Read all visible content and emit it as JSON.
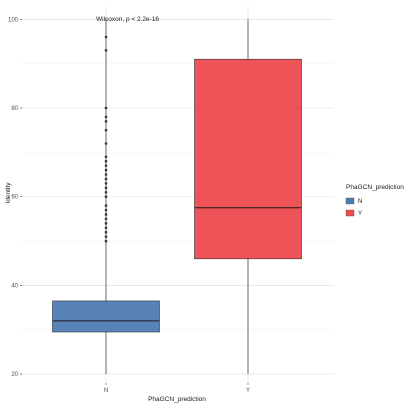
{
  "chart_data": {
    "type": "boxplot",
    "annotation": "Wilcoxon, p < 2.2e-16",
    "xlabel": "PhaGCN_prediction",
    "ylabel": "Identity",
    "ylim": [
      18,
      103
    ],
    "yticks": [
      20,
      40,
      60,
      80,
      100
    ],
    "grid": true,
    "categories": [
      "N",
      "Y"
    ],
    "series": [
      {
        "category": "N",
        "color": "#4e7cb2",
        "whisker_low": 20,
        "q1": 29.5,
        "median": 32,
        "q3": 36.5,
        "whisker_high": 100,
        "outliers": [
          50,
          51,
          52,
          53,
          54,
          55,
          56,
          57,
          58,
          60,
          61,
          62,
          63,
          64,
          65,
          66,
          67,
          68,
          69,
          72,
          75,
          77,
          78,
          80,
          93,
          96
        ]
      },
      {
        "category": "Y",
        "color": "#ed4a4e",
        "whisker_low": 20,
        "q1": 46,
        "median": 57.5,
        "q3": 91,
        "whisker_high": 100,
        "outliers": []
      }
    ],
    "legend": {
      "title": "PhaGCN_prediction",
      "entries": [
        "N",
        "Y"
      ],
      "position": "right"
    }
  }
}
